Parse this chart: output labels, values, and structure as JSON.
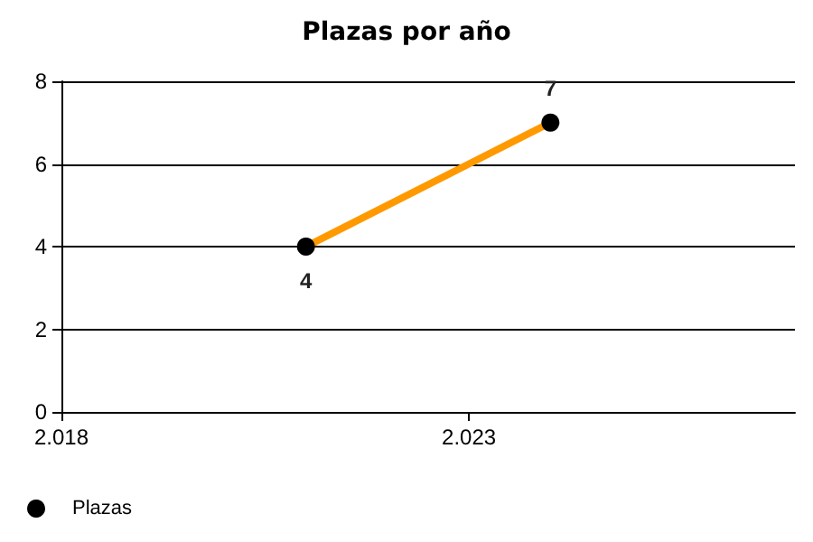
{
  "chart_data": {
    "type": "line",
    "title": "Plazas por año",
    "x": [
      2021,
      2024
    ],
    "series": [
      {
        "name": "Plazas",
        "color": "#ff9900",
        "values": [
          4,
          7
        ]
      }
    ],
    "xlim": [
      2018,
      2027
    ],
    "xticks": [
      {
        "value": 2018,
        "label": "2.018"
      },
      {
        "value": 2023,
        "label": "2.023"
      }
    ],
    "ylim": [
      0,
      8
    ],
    "yticks": [
      0,
      2,
      4,
      6,
      8
    ],
    "grid": "y",
    "legend": "bottom left",
    "marker": "circle",
    "line_style": "solid",
    "data_labels": true
  }
}
